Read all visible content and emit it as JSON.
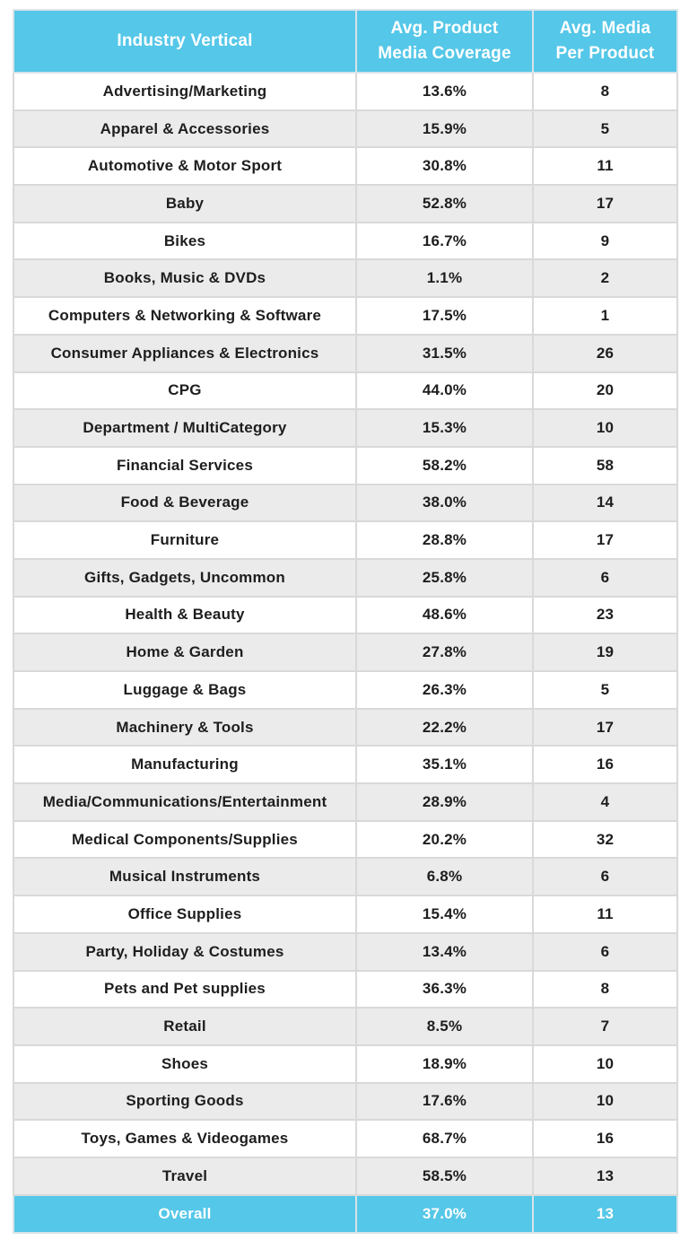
{
  "colors": {
    "accent_blue": "#55c7e8",
    "stripe_gray": "#ebebeb",
    "row_white": "#ffffff",
    "border_gray": "#d9d9d9",
    "text_dark": "#1e1e1e",
    "header_text": "#ffffff"
  },
  "table": {
    "headers": [
      {
        "label": "Industry Vertical"
      },
      {
        "label": "Avg. Product Media Coverage"
      },
      {
        "label": "Avg. Media Per Product"
      }
    ],
    "rows": [
      {
        "industry": "Advertising/Marketing",
        "coverage": "13.6%",
        "media": "8"
      },
      {
        "industry": "Apparel & Accessories",
        "coverage": "15.9%",
        "media": "5"
      },
      {
        "industry": "Automotive & Motor Sport",
        "coverage": "30.8%",
        "media": "11"
      },
      {
        "industry": "Baby",
        "coverage": "52.8%",
        "media": "17"
      },
      {
        "industry": "Bikes",
        "coverage": "16.7%",
        "media": "9"
      },
      {
        "industry": "Books, Music & DVDs",
        "coverage": "1.1%",
        "media": "2"
      },
      {
        "industry": "Computers & Networking & Software",
        "coverage": "17.5%",
        "media": "1"
      },
      {
        "industry": "Consumer Appliances & Electronics",
        "coverage": "31.5%",
        "media": "26"
      },
      {
        "industry": "CPG",
        "coverage": "44.0%",
        "media": "20"
      },
      {
        "industry": "Department / MultiCategory",
        "coverage": "15.3%",
        "media": "10"
      },
      {
        "industry": "Financial Services",
        "coverage": "58.2%",
        "media": "58"
      },
      {
        "industry": "Food & Beverage",
        "coverage": "38.0%",
        "media": "14"
      },
      {
        "industry": "Furniture",
        "coverage": "28.8%",
        "media": "17"
      },
      {
        "industry": "Gifts, Gadgets, Uncommon",
        "coverage": "25.8%",
        "media": "6"
      },
      {
        "industry": "Health & Beauty",
        "coverage": "48.6%",
        "media": "23"
      },
      {
        "industry": "Home & Garden",
        "coverage": "27.8%",
        "media": "19"
      },
      {
        "industry": "Luggage & Bags",
        "coverage": "26.3%",
        "media": "5"
      },
      {
        "industry": "Machinery & Tools",
        "coverage": "22.2%",
        "media": "17"
      },
      {
        "industry": "Manufacturing",
        "coverage": "35.1%",
        "media": "16"
      },
      {
        "industry": "Media/Communications/Entertainment",
        "coverage": "28.9%",
        "media": "4"
      },
      {
        "industry": "Medical Components/Supplies",
        "coverage": "20.2%",
        "media": "32"
      },
      {
        "industry": "Musical Instruments",
        "coverage": "6.8%",
        "media": "6"
      },
      {
        "industry": "Office Supplies",
        "coverage": "15.4%",
        "media": "11"
      },
      {
        "industry": "Party, Holiday & Costumes",
        "coverage": "13.4%",
        "media": "6"
      },
      {
        "industry": "Pets and Pet supplies",
        "coverage": "36.3%",
        "media": "8"
      },
      {
        "industry": "Retail",
        "coverage": "8.5%",
        "media": "7"
      },
      {
        "industry": "Shoes",
        "coverage": "18.9%",
        "media": "10"
      },
      {
        "industry": "Sporting Goods",
        "coverage": "17.6%",
        "media": "10"
      },
      {
        "industry": "Toys, Games & Videogames",
        "coverage": "68.7%",
        "media": "16"
      },
      {
        "industry": "Travel",
        "coverage": "58.5%",
        "media": "13"
      }
    ],
    "footer": {
      "industry": "Overall",
      "coverage": "37.0%",
      "media": "13"
    }
  },
  "chart_data": {
    "type": "table",
    "title": "Average Product Media Coverage and Media Per Product by Industry Vertical",
    "columns": [
      "Industry Vertical",
      "Avg. Product Media Coverage (%)",
      "Avg. Media Per Product"
    ],
    "rows": [
      [
        "Advertising/Marketing",
        13.6,
        8
      ],
      [
        "Apparel & Accessories",
        15.9,
        5
      ],
      [
        "Automotive & Motor Sport",
        30.8,
        11
      ],
      [
        "Baby",
        52.8,
        17
      ],
      [
        "Bikes",
        16.7,
        9
      ],
      [
        "Books, Music & DVDs",
        1.1,
        2
      ],
      [
        "Computers & Networking & Software",
        17.5,
        1
      ],
      [
        "Consumer Appliances & Electronics",
        31.5,
        26
      ],
      [
        "CPG",
        44.0,
        20
      ],
      [
        "Department / MultiCategory",
        15.3,
        10
      ],
      [
        "Financial Services",
        58.2,
        58
      ],
      [
        "Food & Beverage",
        38.0,
        14
      ],
      [
        "Furniture",
        28.8,
        17
      ],
      [
        "Gifts, Gadgets, Uncommon",
        25.8,
        6
      ],
      [
        "Health & Beauty",
        48.6,
        23
      ],
      [
        "Home & Garden",
        27.8,
        19
      ],
      [
        "Luggage & Bags",
        26.3,
        5
      ],
      [
        "Machinery & Tools",
        22.2,
        17
      ],
      [
        "Manufacturing",
        35.1,
        16
      ],
      [
        "Media/Communications/Entertainment",
        28.9,
        4
      ],
      [
        "Medical Components/Supplies",
        20.2,
        32
      ],
      [
        "Musical Instruments",
        6.8,
        6
      ],
      [
        "Office Supplies",
        15.4,
        11
      ],
      [
        "Party, Holiday & Costumes",
        13.4,
        6
      ],
      [
        "Pets and Pet supplies",
        36.3,
        8
      ],
      [
        "Retail",
        8.5,
        7
      ],
      [
        "Shoes",
        18.9,
        10
      ],
      [
        "Sporting Goods",
        17.6,
        10
      ],
      [
        "Toys, Games & Videogames",
        68.7,
        16
      ],
      [
        "Travel",
        58.5,
        13
      ]
    ],
    "overall_row": [
      "Overall",
      37.0,
      13
    ],
    "layout": {
      "striped": true,
      "header_bg": "#55c7e8",
      "footer_bg": "#55c7e8",
      "stripe_bg": "#ebebeb"
    }
  }
}
